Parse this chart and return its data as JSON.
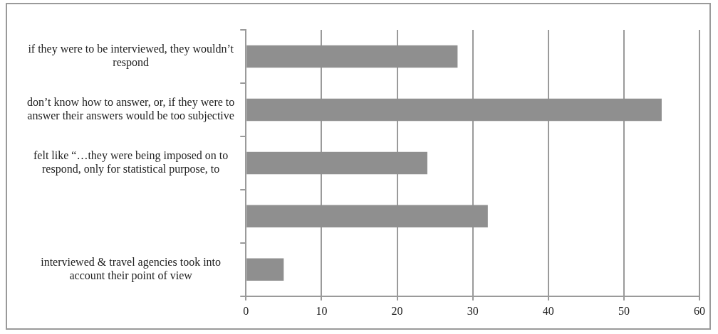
{
  "chart_data": {
    "type": "bar",
    "orientation": "horizontal",
    "categories": [
      "if they were to be interviewed, they wouldn’t\nrespond",
      "don’t know how to answer, or, if they were to\nanswer their answers would be too subjective",
      "felt like “…they were being imposed on to\nrespond, only for statistical purpose, to",
      null,
      "interviewed & travel agencies took into\naccount their point of view"
    ],
    "values": [
      28,
      55,
      24,
      32,
      5
    ],
    "color": "#8f8f8f",
    "xlim": [
      0,
      60
    ],
    "xticks": [
      0,
      10,
      20,
      30,
      40,
      50,
      60
    ],
    "grid": "x",
    "legend": false
  }
}
